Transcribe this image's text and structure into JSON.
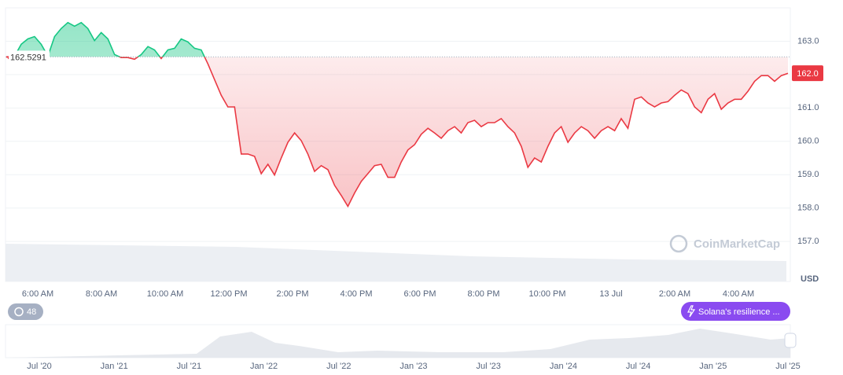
{
  "chart_data": {
    "type": "line",
    "values": [
      162.48,
      162.55,
      162.91,
      163.07,
      163.14,
      162.91,
      162.55,
      163.14,
      163.38,
      163.56,
      163.45,
      163.56,
      163.38,
      163.02,
      163.26,
      163.07,
      162.6,
      162.51,
      162.51,
      162.46,
      162.6,
      162.84,
      162.74,
      162.48,
      162.74,
      162.79,
      163.07,
      162.98,
      162.79,
      162.74,
      162.32,
      161.85,
      161.38,
      161.03,
      161.03,
      159.62,
      159.62,
      159.55,
      159.03,
      159.31,
      158.99,
      159.5,
      159.97,
      160.25,
      160.02,
      159.62,
      159.1,
      159.27,
      159.15,
      158.68,
      158.38,
      158.05,
      158.45,
      158.8,
      159.03,
      159.27,
      159.31,
      158.92,
      158.92,
      159.38,
      159.74,
      159.9,
      160.21,
      160.39,
      160.25,
      160.09,
      160.32,
      160.44,
      160.25,
      160.56,
      160.63,
      160.44,
      160.56,
      160.56,
      160.68,
      160.44,
      160.25,
      159.85,
      159.22,
      159.5,
      159.38,
      159.85,
      160.25,
      160.44,
      159.97,
      160.25,
      160.44,
      160.32,
      160.09,
      160.32,
      160.44,
      160.32,
      160.68,
      160.39,
      161.26,
      161.33,
      161.15,
      161.03,
      161.15,
      161.19,
      161.38,
      161.54,
      161.43,
      161.03,
      160.86,
      161.26,
      161.43,
      160.96,
      161.15,
      161.26,
      161.26,
      161.5,
      161.8,
      161.97,
      161.97,
      161.8,
      161.97,
      162.04
    ],
    "up_color": "#16c784",
    "down_color": "#ea3943",
    "baseline": 162.5291,
    "price_label": "162.0",
    "currency": "USD",
    "x_labels": [
      "6:00 AM",
      "8:00 AM",
      "10:00 AM",
      "12:00 PM",
      "2:00 PM",
      "4:00 PM",
      "6:00 PM",
      "8:00 PM",
      "10:00 PM",
      "13 Jul",
      "2:00 AM",
      "4:00 AM"
    ],
    "ylim": [
      155.8,
      164.0
    ],
    "yticks": [
      {
        "value": 157,
        "label": "157.0"
      },
      {
        "value": 158,
        "label": "158.0"
      },
      {
        "value": 159,
        "label": "159.0"
      },
      {
        "value": 160,
        "label": "160.0"
      },
      {
        "value": 161,
        "label": "161.0"
      },
      {
        "value": 162,
        "label": "162.0"
      },
      {
        "value": 163,
        "label": "163.0"
      }
    ],
    "grid": true,
    "watermark": "CoinMarketCap",
    "news_count": 48,
    "news_headline": "Solana's resilience ...",
    "navigator_labels": [
      "Jul '20",
      "Jan '21",
      "Jul '21",
      "Jan '22",
      "Jul '22",
      "Jan '23",
      "Jul '23",
      "Jan '24",
      "Jul '24",
      "Jan '25",
      "Jul '25"
    ]
  }
}
